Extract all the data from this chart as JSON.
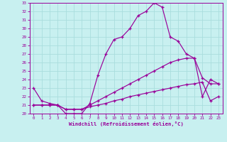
{
  "xlabel": "Windchill (Refroidissement éolien,°C)",
  "ylabel": "",
  "background_color": "#c8f0f0",
  "line_color": "#990099",
  "grid_color": "#aadddd",
  "xlim": [
    -0.5,
    23.5
  ],
  "ylim": [
    20,
    33
  ],
  "xticks": [
    0,
    1,
    2,
    3,
    4,
    5,
    6,
    7,
    8,
    9,
    10,
    11,
    12,
    13,
    14,
    15,
    16,
    17,
    18,
    19,
    20,
    21,
    22,
    23
  ],
  "yticks": [
    20,
    21,
    22,
    23,
    24,
    25,
    26,
    27,
    28,
    29,
    30,
    31,
    32,
    33
  ],
  "line1_x": [
    0,
    1,
    2,
    3,
    4,
    5,
    6,
    7,
    8,
    9,
    10,
    11,
    12,
    13,
    14,
    15,
    16,
    17,
    18,
    19,
    20,
    21,
    22,
    23
  ],
  "line1_y": [
    23,
    21.5,
    21.2,
    21.0,
    20.0,
    20.0,
    20.0,
    21.2,
    24.5,
    27.0,
    28.7,
    29.0,
    30.0,
    31.5,
    32.0,
    33.0,
    32.5,
    29.0,
    28.5,
    27.0,
    26.5,
    24.2,
    23.5,
    23.5
  ],
  "line2_x": [
    0,
    1,
    2,
    3,
    4,
    5,
    6,
    7,
    8,
    9,
    10,
    11,
    12,
    13,
    14,
    15,
    16,
    17,
    18,
    19,
    20,
    21,
    22,
    23
  ],
  "line2_y": [
    21.0,
    21.0,
    21.0,
    21.0,
    20.5,
    20.5,
    20.5,
    21.0,
    21.5,
    22.0,
    22.5,
    23.0,
    23.5,
    24.0,
    24.5,
    25.0,
    25.5,
    26.0,
    26.3,
    26.5,
    26.5,
    22.0,
    24.0,
    23.5
  ],
  "line3_x": [
    0,
    1,
    2,
    3,
    4,
    5,
    6,
    7,
    8,
    9,
    10,
    11,
    12,
    13,
    14,
    15,
    16,
    17,
    18,
    19,
    20,
    21,
    22,
    23
  ],
  "line3_y": [
    21.0,
    21.0,
    21.0,
    21.0,
    20.5,
    20.5,
    20.5,
    20.8,
    21.0,
    21.2,
    21.5,
    21.7,
    22.0,
    22.2,
    22.4,
    22.6,
    22.8,
    23.0,
    23.2,
    23.4,
    23.5,
    23.7,
    21.5,
    22.0
  ]
}
